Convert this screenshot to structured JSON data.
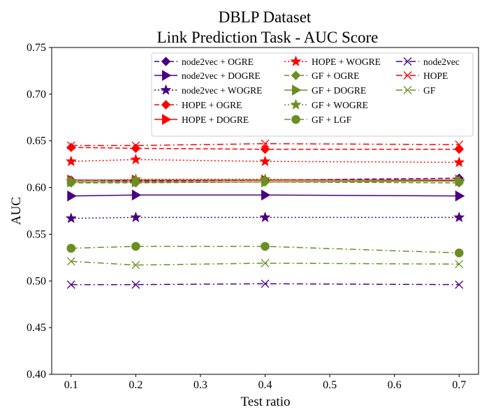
{
  "chart_data": {
    "type": "line",
    "title": "DBLP Dataset",
    "subtitle": "Link Prediction Task - AUC Score",
    "xlabel": "Test ratio",
    "ylabel": "AUC",
    "xlim": [
      0.07,
      0.73
    ],
    "ylim": [
      0.4,
      0.75
    ],
    "x": [
      0.1,
      0.2,
      0.4,
      0.7
    ],
    "x_ticks": [
      0.1,
      0.2,
      0.3,
      0.4,
      0.5,
      0.6,
      0.7
    ],
    "x_tick_labels": [
      "0.1",
      "0.2",
      "0.3",
      "0.4",
      "0.5",
      "0.6",
      "0.7"
    ],
    "y_ticks": [
      0.4,
      0.45,
      0.5,
      0.55,
      0.6,
      0.65,
      0.7,
      0.75
    ],
    "y_tick_labels": [
      "0.40",
      "0.45",
      "0.50",
      "0.55",
      "0.60",
      "0.65",
      "0.70",
      "0.75"
    ],
    "grid": false,
    "legend_position": "top-right",
    "legend_columns": 3,
    "colors": {
      "node2vec": "#4b0082",
      "HOPE": "#ff0000",
      "GF": "#6b8e23"
    },
    "series": [
      {
        "name": "node2vec + OGRE",
        "values": [
          0.608,
          0.607,
          0.608,
          0.61
        ],
        "color": "#4b0082",
        "linestyle": "dashed",
        "marker": "diamond"
      },
      {
        "name": "node2vec + DOGRE",
        "values": [
          0.591,
          0.592,
          0.592,
          0.591
        ],
        "color": "#4b0082",
        "linestyle": "solid",
        "marker": "triangle-right"
      },
      {
        "name": "node2vec + WOGRE",
        "values": [
          0.567,
          0.568,
          0.568,
          0.568
        ],
        "color": "#4b0082",
        "linestyle": "dotted",
        "marker": "star"
      },
      {
        "name": "HOPE + OGRE",
        "values": [
          0.643,
          0.642,
          0.641,
          0.641
        ],
        "color": "#ff0000",
        "linestyle": "dashed",
        "marker": "diamond"
      },
      {
        "name": "HOPE + DOGRE",
        "values": [
          0.608,
          0.608,
          0.608,
          0.608
        ],
        "color": "#ff0000",
        "linestyle": "solid",
        "marker": "triangle-right"
      },
      {
        "name": "HOPE + WOGRE",
        "values": [
          0.628,
          0.63,
          0.628,
          0.627
        ],
        "color": "#ff0000",
        "linestyle": "dotted",
        "marker": "star"
      },
      {
        "name": "GF + OGRE",
        "values": [
          0.605,
          0.605,
          0.606,
          0.605
        ],
        "color": "#6b8e23",
        "linestyle": "dashed",
        "marker": "diamond"
      },
      {
        "name": "GF + DOGRE",
        "values": [
          0.606,
          0.606,
          0.606,
          0.607
        ],
        "color": "#6b8e23",
        "linestyle": "solid",
        "marker": "triangle-right"
      },
      {
        "name": "GF + WOGRE",
        "values": [
          0.607,
          0.609,
          0.609,
          0.607
        ],
        "color": "#6b8e23",
        "linestyle": "dotted",
        "marker": "star"
      },
      {
        "name": "GF + LGF",
        "values": [
          0.535,
          0.537,
          0.537,
          0.53
        ],
        "color": "#6b8e23",
        "linestyle": "dashdot",
        "marker": "circle"
      },
      {
        "name": "node2vec",
        "values": [
          0.496,
          0.496,
          0.497,
          0.496
        ],
        "color": "#4b0082",
        "linestyle": "dashdot",
        "marker": "x"
      },
      {
        "name": "HOPE",
        "values": [
          0.645,
          0.645,
          0.647,
          0.646
        ],
        "color": "#ff0000",
        "linestyle": "dashdot",
        "marker": "x"
      },
      {
        "name": "GF",
        "values": [
          0.521,
          0.517,
          0.519,
          0.518
        ],
        "color": "#6b8e23",
        "linestyle": "dashdot",
        "marker": "x"
      }
    ]
  }
}
